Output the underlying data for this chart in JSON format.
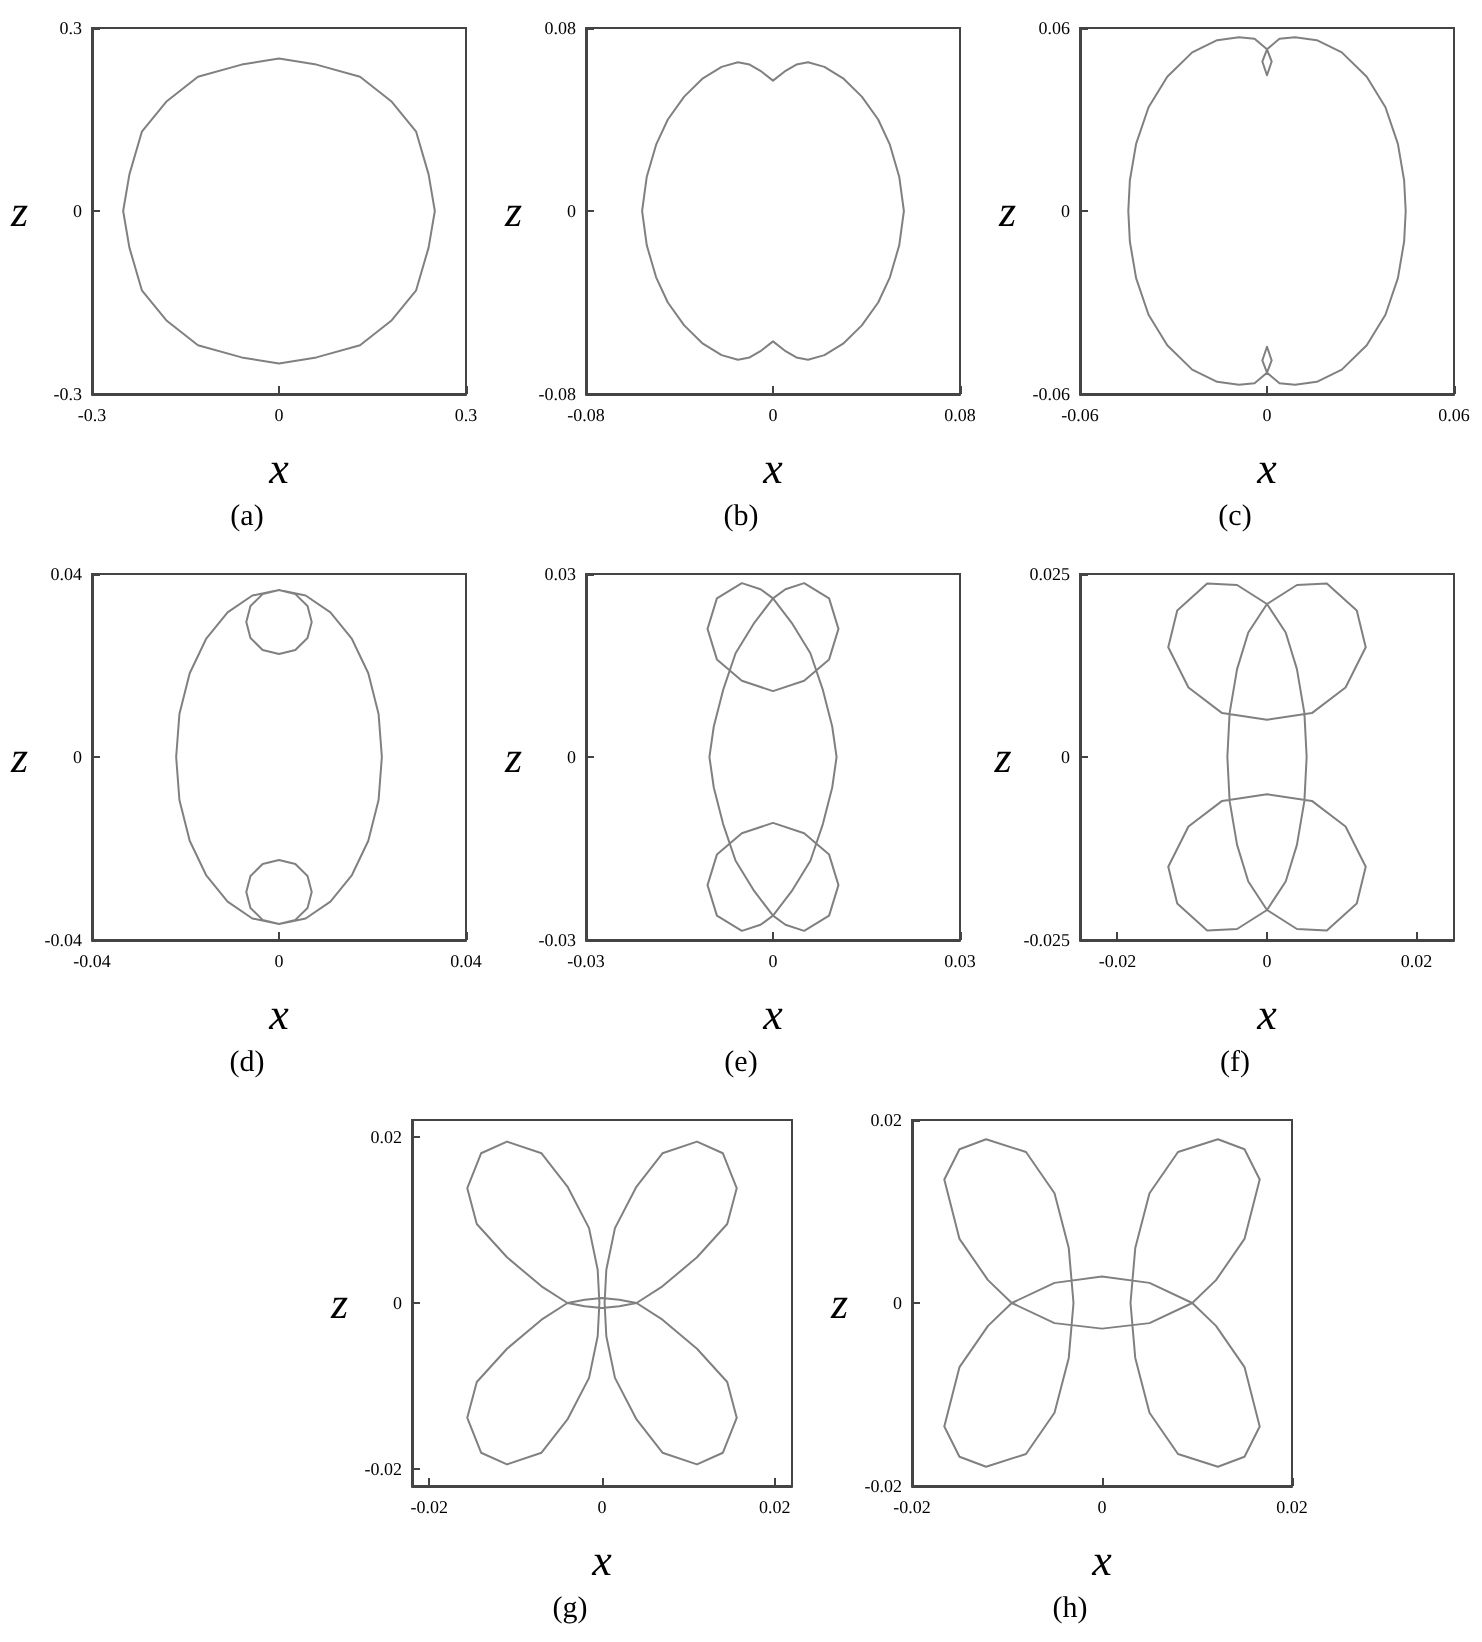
{
  "chart_data": [
    {
      "type": "line",
      "title": "(a)",
      "xlabel": "x",
      "ylabel": "z",
      "xlim": [
        -0.3,
        0.3
      ],
      "ylim": [
        -0.3,
        0.3
      ],
      "xticks": [
        -0.3,
        0,
        0.3
      ],
      "yticks": [
        -0.3,
        0,
        0.3
      ],
      "marker": "none",
      "series": [
        {
          "color": "#808080",
          "x": [
            -0.25,
            -0.24,
            -0.22,
            -0.18,
            -0.13,
            -0.06,
            0,
            0.06,
            0.13,
            0.18,
            0.22,
            0.24,
            0.25,
            null,
            -0.25,
            -0.24,
            -0.22,
            -0.18,
            -0.13,
            -0.06,
            0,
            0.06,
            0.13,
            0.18,
            0.22,
            0.24,
            0.25
          ],
          "values": [
            0,
            0.06,
            0.13,
            0.18,
            0.22,
            0.24,
            0.25,
            0.24,
            0.22,
            0.18,
            0.13,
            0.06,
            0,
            null,
            0,
            -0.06,
            -0.13,
            -0.18,
            -0.22,
            -0.24,
            -0.25,
            -0.24,
            -0.22,
            -0.18,
            -0.13,
            -0.06,
            0
          ]
        }
      ]
    },
    {
      "type": "line",
      "title": "(b)",
      "xlabel": "x",
      "ylabel": "z",
      "xlim": [
        -0.08,
        0.08
      ],
      "ylim": [
        -0.08,
        0.08
      ],
      "xticks": [
        -0.08,
        0,
        0.08
      ],
      "yticks": [
        -0.08,
        0,
        0.08
      ],
      "marker": "none",
      "series": [
        {
          "color": "#808080",
          "x": [
            -0.056,
            -0.054,
            -0.05,
            -0.045,
            -0.038,
            -0.03,
            -0.022,
            -0.015,
            -0.01,
            -0.005,
            0,
            0.005,
            0.01,
            0.015,
            0.022,
            0.03,
            0.038,
            0.045,
            0.05,
            0.054,
            0.056,
            null,
            -0.056,
            -0.054,
            -0.05,
            -0.045,
            -0.038,
            -0.03,
            -0.022,
            -0.015,
            -0.01,
            -0.005,
            0,
            0.005,
            0.01,
            0.015,
            0.022,
            0.03,
            0.038,
            0.045,
            0.05,
            0.054,
            0.056
          ],
          "values": [
            0,
            0.015,
            0.029,
            0.04,
            0.05,
            0.058,
            0.063,
            0.065,
            0.064,
            0.061,
            0.057,
            0.061,
            0.064,
            0.065,
            0.063,
            0.058,
            0.05,
            0.04,
            0.029,
            0.015,
            0,
            null,
            0,
            -0.015,
            -0.029,
            -0.04,
            -0.05,
            -0.058,
            -0.063,
            -0.065,
            -0.064,
            -0.061,
            -0.057,
            -0.061,
            -0.064,
            -0.065,
            -0.063,
            -0.058,
            -0.05,
            -0.04,
            -0.029,
            -0.015,
            0
          ]
        }
      ]
    },
    {
      "type": "line",
      "title": "(c)",
      "xlabel": "x",
      "ylabel": "z",
      "xlim": [
        -0.06,
        0.06
      ],
      "ylim": [
        -0.06,
        0.06
      ],
      "xticks": [
        -0.06,
        0,
        0.06
      ],
      "yticks": [
        -0.06,
        0,
        0.06
      ],
      "marker": "none",
      "series": [
        {
          "color": "#808080",
          "x": [
            -0.0445,
            -0.044,
            -0.042,
            -0.038,
            -0.032,
            -0.024,
            -0.016,
            -0.009,
            -0.004,
            0,
            0.0015,
            null,
            -0.0015,
            0,
            0.0015,
            null,
            -0.0015,
            0,
            0.004,
            0.009,
            0.016,
            0.024,
            0.032,
            0.038,
            0.042,
            0.044,
            0.0445,
            null,
            -0.0445,
            -0.044,
            -0.042,
            -0.038,
            -0.032,
            -0.024,
            -0.016,
            -0.009,
            -0.004,
            0,
            0.0015,
            null,
            -0.0015,
            0,
            0.0015,
            null,
            -0.0015,
            0,
            0.004,
            0.009,
            0.016,
            0.024,
            0.032,
            0.038,
            0.042,
            0.044,
            0.0445
          ],
          "values": [
            0,
            0.01,
            0.022,
            0.034,
            0.044,
            0.052,
            0.056,
            0.057,
            0.0565,
            0.053,
            0.049,
            null,
            0.049,
            0.0445,
            0.049,
            null,
            0.049,
            0.053,
            0.0565,
            0.057,
            0.056,
            0.052,
            0.044,
            0.034,
            0.022,
            0.01,
            0,
            null,
            0,
            -0.01,
            -0.022,
            -0.034,
            -0.044,
            -0.052,
            -0.056,
            -0.057,
            -0.0565,
            -0.053,
            -0.049,
            null,
            -0.049,
            -0.0445,
            -0.049,
            null,
            -0.049,
            -0.053,
            -0.0565,
            -0.057,
            -0.056,
            -0.052,
            -0.044,
            -0.034,
            -0.022,
            -0.01,
            0
          ]
        }
      ]
    },
    {
      "type": "line",
      "title": "(d)",
      "xlabel": "x",
      "ylabel": "z",
      "xlim": [
        -0.04,
        0.04
      ],
      "ylim": [
        -0.04,
        0.04
      ],
      "xticks": [
        -0.04,
        0,
        0.04
      ],
      "yticks": [
        -0.04,
        0,
        0.04
      ],
      "marker": "none",
      "series": [
        {
          "color": "#808080",
          "x": [
            -0.022,
            -0.0213,
            -0.0191,
            -0.0156,
            -0.011,
            -0.0057,
            0,
            0.0057,
            0.011,
            0.0156,
            0.0191,
            0.0213,
            0.022,
            null,
            -0.022,
            -0.0213,
            -0.0191,
            -0.0156,
            -0.011,
            -0.0057,
            0,
            0.0057,
            0.011,
            0.0156,
            0.0191,
            0.0213,
            0.022,
            null,
            -0.007,
            -0.0061,
            -0.0035,
            0,
            0.0035,
            0.0061,
            0.007,
            null,
            -0.007,
            -0.0061,
            -0.0035,
            0,
            0.0035,
            0.0061,
            0.007,
            null,
            -0.007,
            -0.0061,
            -0.0035,
            0,
            0.0035,
            0.0061,
            0.007,
            null,
            -0.007,
            -0.0061,
            -0.0035,
            0,
            0.0035,
            0.0061,
            0.007
          ],
          "values": [
            0,
            0.0094,
            0.0183,
            0.0258,
            0.0316,
            0.0353,
            0.0365,
            0.0353,
            0.0316,
            0.0258,
            0.0183,
            0.0094,
            0,
            null,
            0,
            -0.0094,
            -0.0183,
            -0.0258,
            -0.0316,
            -0.0353,
            -0.0365,
            -0.0353,
            -0.0316,
            -0.0258,
            -0.0183,
            -0.0094,
            0,
            null,
            0.0295,
            0.033,
            0.0356,
            0.0365,
            0.0356,
            0.033,
            0.0295,
            null,
            0.0295,
            0.026,
            0.0234,
            0.0225,
            0.0234,
            0.026,
            0.0295,
            null,
            -0.0295,
            -0.026,
            -0.0234,
            -0.0225,
            -0.0234,
            -0.026,
            -0.0295,
            null,
            -0.0295,
            -0.033,
            -0.0356,
            -0.0365,
            -0.0356,
            -0.033,
            -0.0295
          ]
        }
      ]
    },
    {
      "type": "line",
      "title": "(e)",
      "xlabel": "x",
      "ylabel": "z",
      "xlim": [
        -0.03,
        0.03
      ],
      "ylim": [
        -0.03,
        0.03
      ],
      "xticks": [
        -0.03,
        0,
        0.03
      ],
      "yticks": [
        -0.03,
        0,
        0.03
      ],
      "marker": "none",
      "series": [
        {
          "color": "#808080",
          "x": [
            -0.0105,
            -0.009,
            -0.005,
            0,
            0.005,
            0.009,
            0.0105,
            null,
            -0.0102,
            -0.0095,
            -0.008,
            -0.006,
            -0.003,
            0,
            0.002,
            0.005,
            0.009,
            0.0105,
            null,
            -0.0102,
            -0.0095,
            -0.008,
            -0.006,
            -0.003,
            0,
            0.002,
            0.005,
            0.009,
            0.0105,
            null,
            -0.0105,
            -0.009,
            -0.005,
            0,
            0.005,
            0.009,
            0.0105,
            null,
            -0.0105,
            -0.009,
            -0.005,
            -0.002,
            0,
            0.003,
            0.006,
            0.008,
            0.0095,
            0.0102,
            null,
            -0.0105,
            -0.009,
            -0.005,
            -0.002,
            0,
            0.003,
            0.006,
            0.008,
            0.0095,
            0.0102
          ],
          "values": [
            0.021,
            0.016,
            0.0125,
            0.0108,
            0.0125,
            0.016,
            0.021,
            null,
            0,
            0.005,
            0.011,
            0.017,
            0.022,
            0.026,
            0.0275,
            0.0285,
            0.026,
            0.021,
            null,
            0,
            -0.005,
            -0.011,
            -0.017,
            -0.022,
            -0.026,
            -0.0275,
            -0.0285,
            -0.026,
            -0.021,
            null,
            -0.021,
            -0.016,
            -0.0125,
            -0.0108,
            -0.0125,
            -0.016,
            -0.021,
            null,
            -0.021,
            -0.026,
            -0.0285,
            -0.0275,
            -0.026,
            -0.022,
            -0.017,
            -0.011,
            -0.005,
            0,
            null,
            0.021,
            0.026,
            0.0285,
            0.0275,
            0.026,
            0.022,
            0.017,
            0.011,
            0.005,
            0
          ]
        }
      ]
    },
    {
      "type": "line",
      "title": "(f)",
      "xlabel": "x",
      "ylabel": "z",
      "xlim": [
        -0.025,
        0.025
      ],
      "ylim": [
        -0.025,
        0.025
      ],
      "xticks": [
        -0.02,
        0,
        0.02
      ],
      "yticks": [
        -0.025,
        0,
        0.025
      ],
      "marker": "none",
      "series": [
        {
          "color": "#808080",
          "x": [
            -0.0132,
            -0.0105,
            -0.006,
            0,
            0.006,
            0.0105,
            0.0132,
            null,
            -0.0053,
            -0.005,
            -0.004,
            -0.0025,
            0,
            0.004,
            0.008,
            0.012,
            0.0132,
            null,
            -0.0053,
            -0.005,
            -0.004,
            -0.0025,
            0,
            null,
            -0.0132,
            -0.012,
            -0.008,
            -0.004,
            0,
            null,
            -0.0132,
            -0.0105,
            -0.006,
            0,
            0.006,
            0.0105,
            0.0132,
            null,
            0,
            0.004,
            0.008,
            0.012,
            0.0132,
            null,
            0,
            0.0025,
            0.004,
            0.005,
            0.0053,
            null,
            -0.0132,
            -0.012,
            -0.008,
            -0.004,
            0,
            0.0025,
            0.004,
            0.005,
            0.0053
          ],
          "values": [
            0.015,
            0.0095,
            0.006,
            0.0051,
            0.006,
            0.0095,
            0.015,
            null,
            0,
            0.006,
            0.012,
            0.017,
            0.0209,
            0.0235,
            0.0237,
            0.02,
            0.015,
            null,
            0,
            -0.006,
            -0.012,
            -0.017,
            -0.0209,
            null,
            -0.015,
            -0.02,
            -0.0237,
            -0.0235,
            -0.0209,
            null,
            -0.015,
            -0.0095,
            -0.006,
            -0.0051,
            -0.006,
            -0.0095,
            -0.015,
            null,
            -0.0209,
            -0.0235,
            -0.0237,
            -0.02,
            -0.015,
            null,
            -0.0209,
            -0.017,
            -0.012,
            -0.006,
            0,
            null,
            0.015,
            0.02,
            0.0237,
            0.0235,
            0.0209,
            0.017,
            0.012,
            0.006,
            0
          ]
        }
      ]
    },
    {
      "type": "line",
      "title": "(g)",
      "xlabel": "x",
      "ylabel": "z",
      "xlim": [
        -0.022,
        0.022
      ],
      "ylim": [
        -0.022,
        0.022
      ],
      "xticks": [
        -0.02,
        0,
        0.02
      ],
      "yticks": [
        -0.02,
        0,
        0.02
      ],
      "marker": "none",
      "series": [
        {
          "color": "#808080",
          "x": [
            -0.0156,
            -0.0145,
            -0.011,
            -0.007,
            -0.004,
            -0.002,
            0,
            0.002,
            0.004,
            0.007,
            0.011,
            0.0145,
            0.0156,
            null,
            0.0003,
            0.0005,
            0.0015,
            0.004,
            0.007,
            0.011,
            0.014,
            0.0156,
            null,
            0.0003,
            0.0005,
            0.0015,
            0.004,
            0.007,
            0.011,
            0.014,
            0.0156,
            null,
            -0.0156,
            -0.0145,
            -0.011,
            -0.007,
            -0.004,
            -0.002,
            0,
            0.002,
            0.004,
            0.007,
            0.011,
            0.0145,
            0.0156,
            null,
            -0.0156,
            -0.014,
            -0.011,
            -0.007,
            -0.004,
            -0.0015,
            -0.0005,
            -0.0003,
            null,
            -0.0156,
            -0.014,
            -0.011,
            -0.007,
            -0.004,
            -0.0015,
            -0.0005,
            -0.0003
          ],
          "values": [
            0.0138,
            0.0095,
            0.0055,
            0.002,
            0,
            -0.0004,
            -0.0006,
            -0.0004,
            0,
            0.002,
            0.0055,
            0.0095,
            0.0138,
            null,
            0,
            0.004,
            0.009,
            0.014,
            0.018,
            0.0194,
            0.018,
            0.0138,
            null,
            0,
            -0.004,
            -0.009,
            -0.014,
            -0.018,
            -0.0194,
            -0.018,
            -0.0138,
            null,
            -0.0138,
            -0.0095,
            -0.0055,
            -0.002,
            0,
            0.0004,
            0.0006,
            0.0004,
            0,
            -0.002,
            -0.0055,
            -0.0095,
            -0.0138,
            null,
            -0.0138,
            -0.018,
            -0.0194,
            -0.018,
            -0.014,
            -0.009,
            -0.004,
            0,
            null,
            0.0138,
            0.018,
            0.0194,
            0.018,
            0.014,
            0.009,
            0.004,
            0
          ]
        }
      ]
    },
    {
      "type": "line",
      "title": "(h)",
      "xlabel": "x",
      "ylabel": "z",
      "xlim": [
        -0.02,
        0.02
      ],
      "ylim": [
        -0.02,
        0.02
      ],
      "xticks": [
        -0.02,
        0,
        0.02
      ],
      "yticks": [
        -0.02,
        0,
        0.02
      ],
      "marker": "none",
      "series": [
        {
          "color": "#808080",
          "x": [
            -0.0166,
            -0.015,
            -0.012,
            -0.0095,
            -0.005,
            0,
            0.005,
            0.0095,
            0.012,
            0.015,
            0.0166,
            null,
            0.003,
            0.0035,
            0.005,
            0.008,
            0.0122,
            0.015,
            0.0166,
            null,
            0.003,
            0.0035,
            0.005,
            0.008,
            0.0122,
            0.015,
            0.0166,
            null,
            -0.0166,
            -0.015,
            -0.012,
            -0.0095,
            -0.005,
            0,
            0.005,
            0.0095,
            0.012,
            0.015,
            0.0166,
            null,
            -0.0166,
            -0.015,
            -0.0122,
            -0.008,
            -0.005,
            -0.0035,
            -0.003,
            null,
            -0.0166,
            -0.015,
            -0.0122,
            -0.008,
            -0.005,
            -0.0035,
            -0.003
          ],
          "values": [
            0.0135,
            0.007,
            0.0025,
            0,
            -0.0022,
            -0.0028,
            -0.0022,
            0,
            0.0025,
            0.007,
            0.0135,
            null,
            0,
            0.006,
            0.012,
            0.0165,
            0.0179,
            0.0168,
            0.0135,
            null,
            0,
            -0.006,
            -0.012,
            -0.0165,
            -0.0179,
            -0.0168,
            -0.0135,
            null,
            -0.0135,
            -0.007,
            -0.0025,
            0,
            0.0022,
            0.0029,
            0.0022,
            0,
            -0.0025,
            -0.007,
            -0.0135,
            null,
            -0.0135,
            -0.0168,
            -0.0179,
            -0.0165,
            -0.012,
            -0.006,
            0,
            null,
            0.0135,
            0.0168,
            0.0179,
            0.0165,
            0.012,
            0.006,
            0
          ]
        }
      ]
    }
  ]
}
